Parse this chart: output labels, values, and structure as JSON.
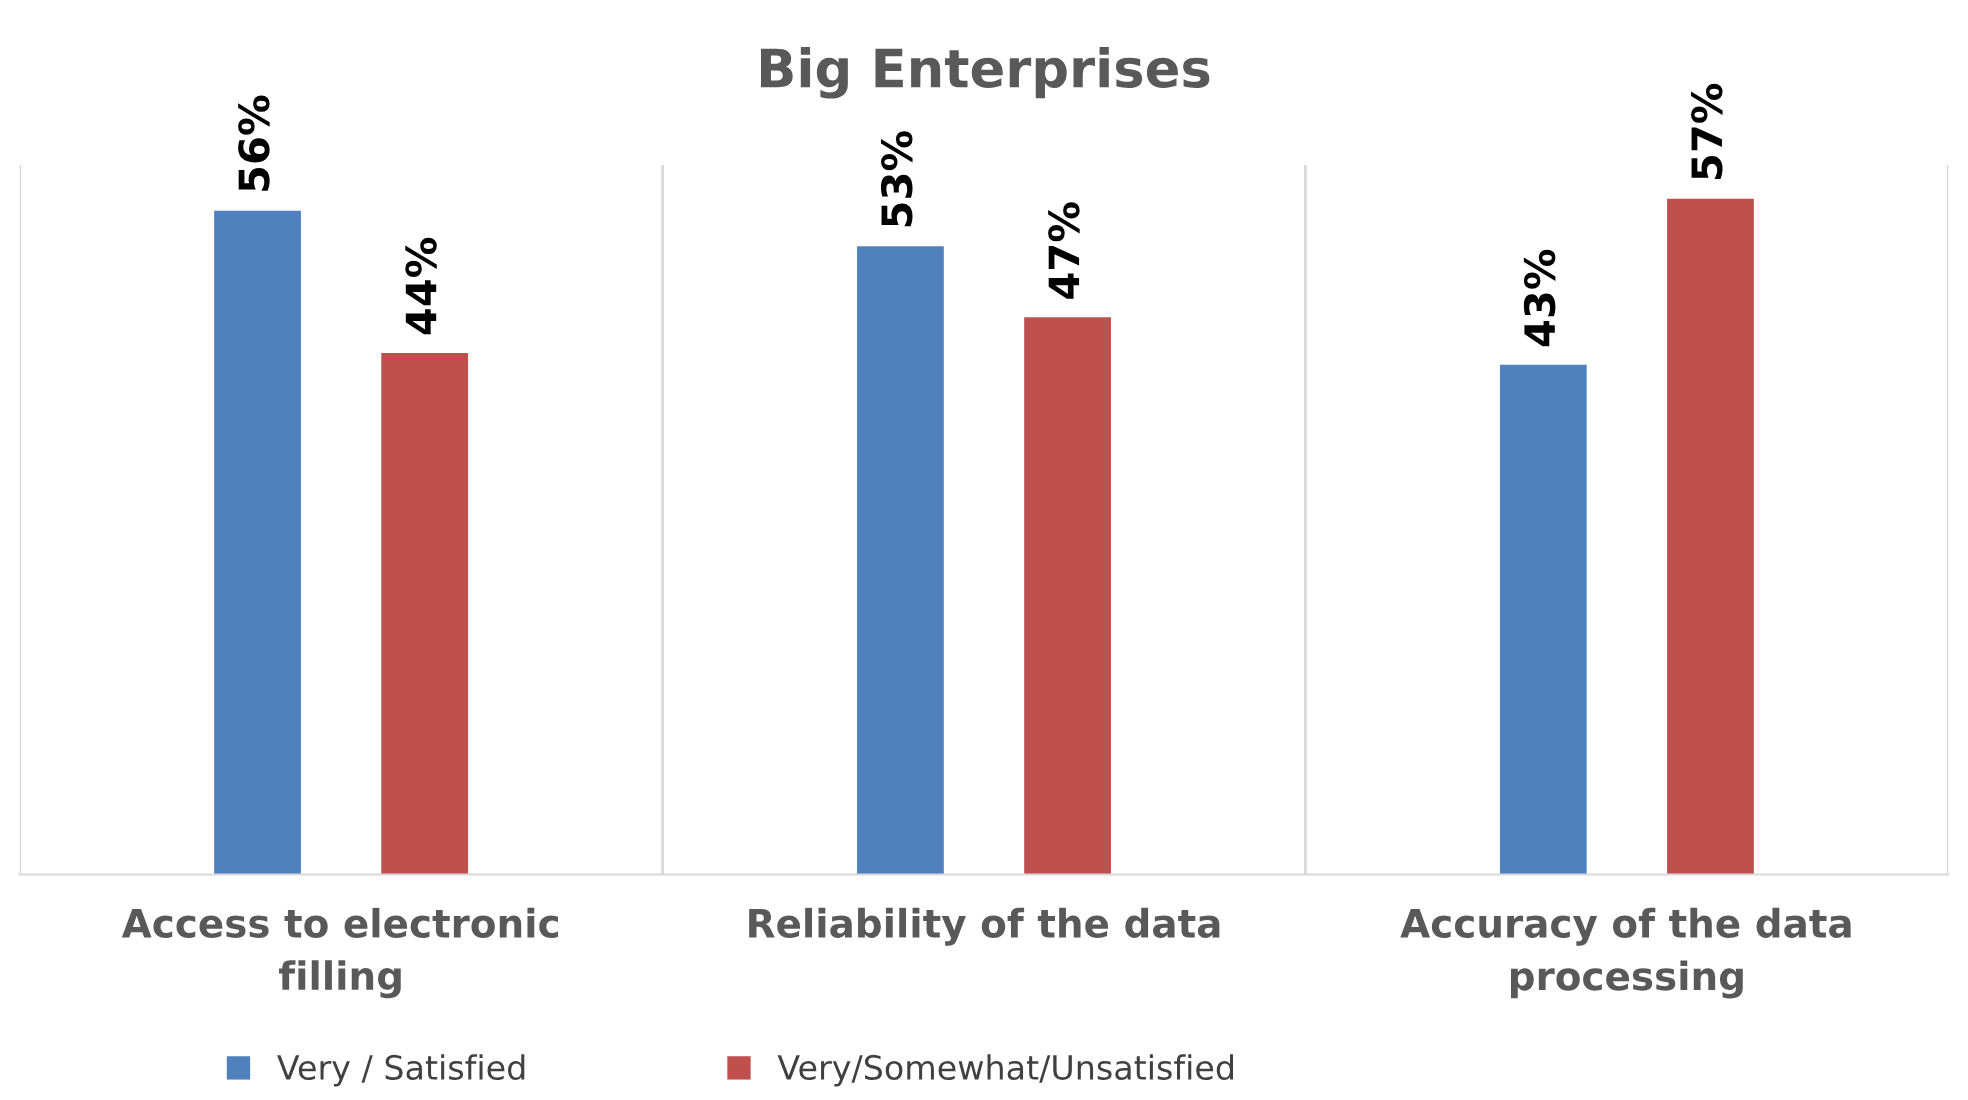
{
  "chart_data": {
    "type": "bar",
    "title": "Big Enterprises",
    "categories": [
      "Access to electronic\nfilling",
      "Reliability of the data",
      "Accuracy of the data\nprocessing"
    ],
    "series": [
      {
        "name": "Very / Satisfied",
        "color": "#4f81bd",
        "values": [
          56,
          53,
          43
        ],
        "value_labels": [
          "56%",
          "53%",
          "43%"
        ]
      },
      {
        "name": "Very/Somewhat/Unsatisfied",
        "color": "#c0504d",
        "values": [
          44,
          47,
          57
        ],
        "value_labels": [
          "44%",
          "47%",
          "57%"
        ]
      }
    ],
    "legend": "bottom",
    "grid": false,
    "tick_labels": "x"
  }
}
